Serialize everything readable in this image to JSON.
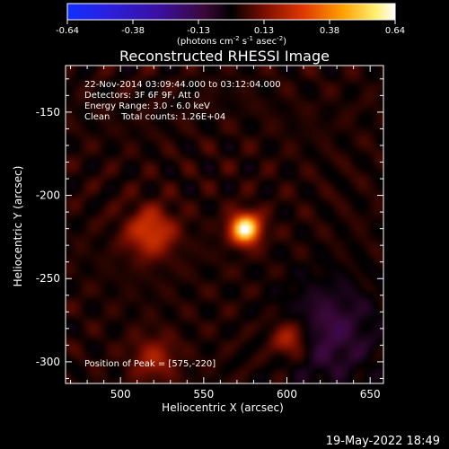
{
  "chart_data": {
    "type": "heatmap",
    "title": "Reconstructed RHESSI Image",
    "xlabel": "Heliocentric X (arcsec)",
    "ylabel": "Heliocentric Y (arcsec)",
    "xlim": [
      467,
      658
    ],
    "ylim": [
      -313,
      -122
    ],
    "x_ticks": [
      500,
      550,
      600,
      650
    ],
    "y_ticks": [
      -150,
      -200,
      -250,
      -300
    ],
    "colorbar": {
      "min": -0.64,
      "max": 0.64,
      "ticks": [
        "-0.64",
        "-0.38",
        "-0.13",
        "0.13",
        "0.38",
        "0.64"
      ],
      "unit_label": "(photons cm",
      "unit_exp1": "-2",
      "unit_mid": " s",
      "unit_exp2": "-1",
      "unit_mid2": " asec",
      "unit_exp3": "-2",
      "unit_end": ")"
    },
    "annotations": {
      "time": "22-Nov-2014 03:09:44.000 to 03:12:04.000",
      "detectors": "Detectors: 3F 6F 9F, Att 0",
      "energy": "Energy Range: 3.0 - 6.0 keV",
      "clean": "Clean    Total counts: 1.26E+04",
      "peak": "Position of Peak = [575,-220]"
    },
    "sources": [
      {
        "x": 575,
        "y": -220,
        "amplitude": 0.64,
        "sigma": 6
      },
      {
        "x": 518,
        "y": -222,
        "amplitude": 0.25,
        "sigma": 10
      },
      {
        "x": 602,
        "y": -286,
        "amplitude": 0.22,
        "sigma": 8
      },
      {
        "x": 520,
        "y": -298,
        "amplitude": 0.15,
        "sigma": 9
      }
    ],
    "negative_region": {
      "x": 625,
      "y": -282,
      "amplitude": -0.14
    }
  },
  "footer": {
    "date": "19-May-2022 18:49"
  }
}
